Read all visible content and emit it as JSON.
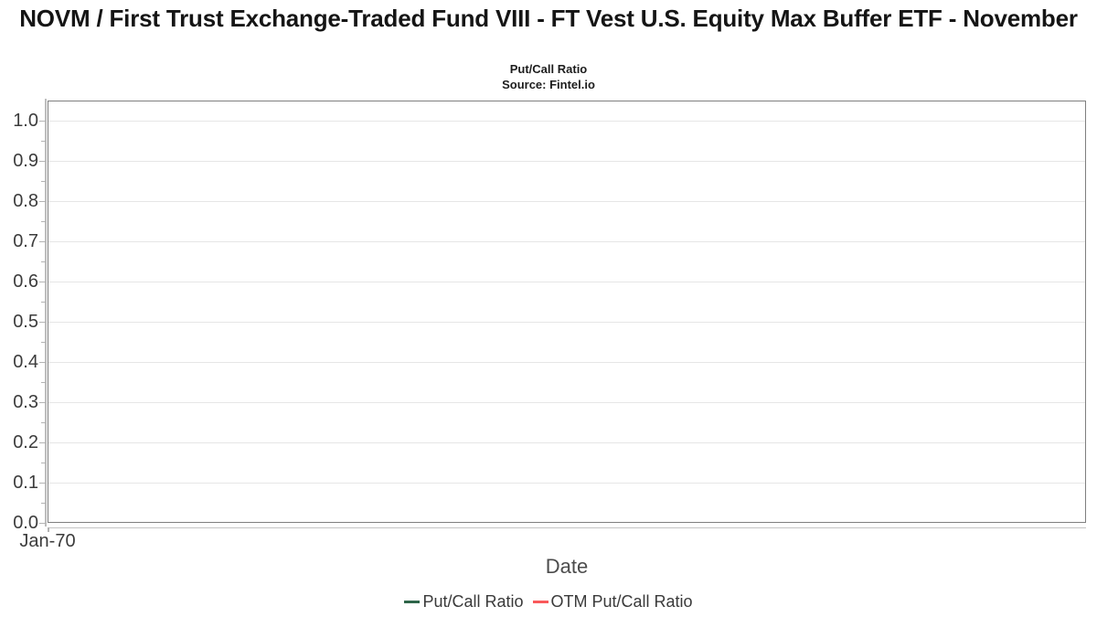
{
  "header": {
    "title": "NOVM / First Trust Exchange-Traded Fund VIII - FT Vest U.S. Equity Max Buffer ETF - November",
    "subtitle": "Put/Call Ratio",
    "source": "Source: Fintel.io"
  },
  "chart_data": {
    "type": "line",
    "title": "NOVM / First Trust Exchange-Traded Fund VIII - FT Vest U.S. Equity Max Buffer ETF - November",
    "subtitle": "Put/Call Ratio",
    "source": "Source: Fintel.io",
    "xlabel": "Date",
    "ylabel": "",
    "x_tick_labels": [
      "Jan-70"
    ],
    "y_major_ticks": [
      0.0,
      0.1,
      0.2,
      0.3,
      0.4,
      0.5,
      0.6,
      0.7,
      0.8,
      0.9,
      1.0
    ],
    "y_minor_tick_interval": 0.05,
    "y_tick_format_decimals": 1,
    "ylim": [
      0,
      1.05
    ],
    "grid": true,
    "legend_position": "bottom",
    "series": [
      {
        "name": "Put/Call Ratio",
        "color": "#2e6549",
        "x": [],
        "values": []
      },
      {
        "name": "OTM Put/Call Ratio",
        "color": "#f9595b",
        "x": [],
        "values": []
      }
    ],
    "note_empty": "no data points plotted in visible range"
  },
  "colors": {
    "plot_border": "#7f7f7f",
    "gridline": "#e6e6e6",
    "axis_line": "#bdbdbd",
    "tick_label": "#3c3c3c",
    "axis_title": "#4c4c4c",
    "legend_text": "#3a3a3a",
    "title_text": "#151515"
  }
}
